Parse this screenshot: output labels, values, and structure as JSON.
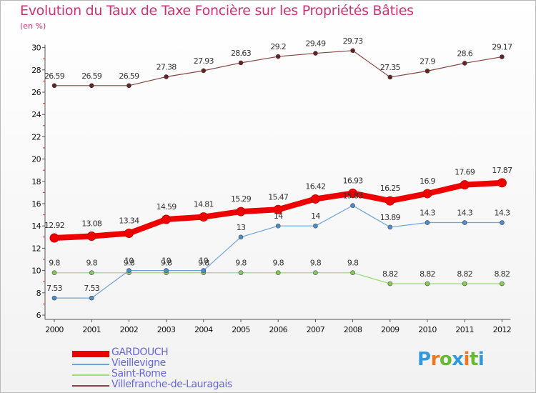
{
  "title": "Evolution du Taux de Taxe Foncière sur les Propriétés Bâties",
  "unit_label": "(en %)",
  "logo": {
    "letters": [
      "P",
      "r",
      "o",
      "x",
      "i",
      "t",
      "i"
    ],
    "colors": [
      "#3399dd",
      "#ee7722",
      "#66bb33",
      "#3399dd",
      "#ee7722",
      "#66bb33",
      "#3399dd"
    ]
  },
  "chart_data": {
    "type": "line",
    "title": "Evolution du Taux de Taxe Foncière sur les Propriétés Bâties",
    "ylabel": "(en %)",
    "xlabel": "",
    "ylim": [
      6,
      30
    ],
    "y_ticks": [
      6,
      8,
      10,
      12,
      14,
      16,
      18,
      20,
      22,
      24,
      26,
      28,
      30
    ],
    "x": [
      "2000",
      "2001",
      "2002",
      "2003",
      "2004",
      "2005",
      "2006",
      "2007",
      "2008",
      "2009",
      "2010",
      "2011",
      "2012"
    ],
    "grid": false,
    "series": [
      {
        "name": "GARDOUCH",
        "color": "#ee0000",
        "marker": "#ee0000",
        "emphasis": true,
        "values": [
          12.92,
          13.08,
          13.34,
          14.59,
          14.81,
          15.29,
          15.47,
          16.42,
          16.93,
          16.25,
          16.9,
          17.69,
          17.87
        ],
        "labels": [
          "12.92",
          "13.08",
          "13.34",
          "14.59",
          "14.81",
          "15.29",
          "15.47",
          "16.42",
          "16.93",
          "16.25",
          "16.9",
          "17.69",
          "17.87"
        ]
      },
      {
        "name": "Vieillevigne",
        "color": "#6fa3d9",
        "marker": "#4d8fcc",
        "values": [
          7.53,
          7.53,
          10,
          10,
          10,
          13,
          14,
          14,
          15.83,
          13.89,
          14.3,
          14.3,
          14.3
        ],
        "labels": [
          "7.53",
          "7.53",
          "10",
          "10",
          "10",
          "13",
          "14",
          "14",
          "15.83",
          "13.89",
          "14.3",
          "14.3",
          "14.3"
        ]
      },
      {
        "name": "Saint-Rome",
        "color": "#99dd77",
        "marker": "#88cc55",
        "values": [
          9.8,
          9.8,
          9.8,
          9.8,
          9.8,
          9.8,
          9.8,
          9.8,
          9.8,
          8.82,
          8.82,
          8.82,
          8.82
        ],
        "labels": [
          "9.8",
          "9.8",
          "9.8",
          "9.8",
          "9.8",
          "9.8",
          "9.8",
          "9.8",
          "9.8",
          "8.82",
          "8.82",
          "8.82",
          "8.82"
        ]
      },
      {
        "name": "Villefranche-de-Lauragais",
        "color": "#884444",
        "marker": "#662222",
        "values": [
          26.59,
          26.59,
          26.59,
          27.38,
          27.93,
          28.63,
          29.2,
          29.49,
          29.73,
          27.35,
          27.9,
          28.6,
          29.17
        ],
        "labels": [
          "26.59",
          "26.59",
          "26.59",
          "27.38",
          "27.93",
          "28.63",
          "29.2",
          "29.49",
          "29.73",
          "27.35",
          "27.9",
          "28.6",
          "29.17"
        ]
      }
    ],
    "legend_position": "bottom-left"
  }
}
